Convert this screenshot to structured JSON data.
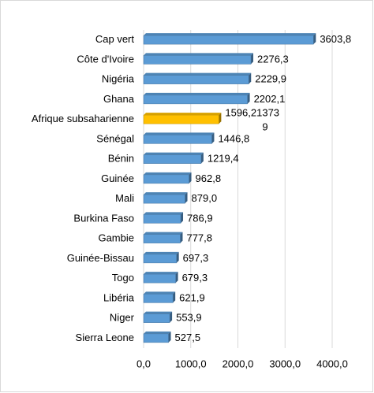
{
  "chart_data": {
    "type": "bar",
    "orientation": "horizontal",
    "categories": [
      "Cap vert",
      "Côte d'Ivoire",
      "Nigéria",
      "Ghana",
      "Afrique subsaharienne",
      "Sénégal",
      "Bénin",
      "Guinée",
      "Mali",
      "Burkina Faso",
      "Gambie",
      "Guinée-Bissau",
      "Togo",
      "Libéria",
      "Niger",
      "Sierra Leone"
    ],
    "values": [
      3603.8,
      2276.3,
      2229.9,
      2202.1,
      1596.213739,
      1446.8,
      1219.4,
      962.8,
      879.0,
      786.9,
      777.8,
      697.3,
      679.3,
      621.9,
      553.9,
      527.5
    ],
    "value_labels": [
      "3603,8",
      "2276,3",
      "2229,9",
      "2202,1",
      "1596,213739",
      "1446,8",
      "1219,4",
      "962,8",
      "879,0",
      "786,9",
      "777,8",
      "697,3",
      "679,3",
      "621,9",
      "553,9",
      "527,5"
    ],
    "colors": [
      "#5b9bd5",
      "#5b9bd5",
      "#5b9bd5",
      "#5b9bd5",
      "#ffc000",
      "#5b9bd5",
      "#5b9bd5",
      "#5b9bd5",
      "#5b9bd5",
      "#5b9bd5",
      "#5b9bd5",
      "#5b9bd5",
      "#5b9bd5",
      "#5b9bd5",
      "#5b9bd5",
      "#5b9bd5"
    ],
    "xlim": [
      0,
      4000
    ],
    "xticks": [
      {
        "value": 0,
        "label": "0,0"
      },
      {
        "value": 1000,
        "label": "1000,0"
      },
      {
        "value": 2000,
        "label": "2000,0"
      },
      {
        "value": 3000,
        "label": "3000,0"
      },
      {
        "value": 4000,
        "label": "4000,0"
      }
    ],
    "grid": true
  }
}
